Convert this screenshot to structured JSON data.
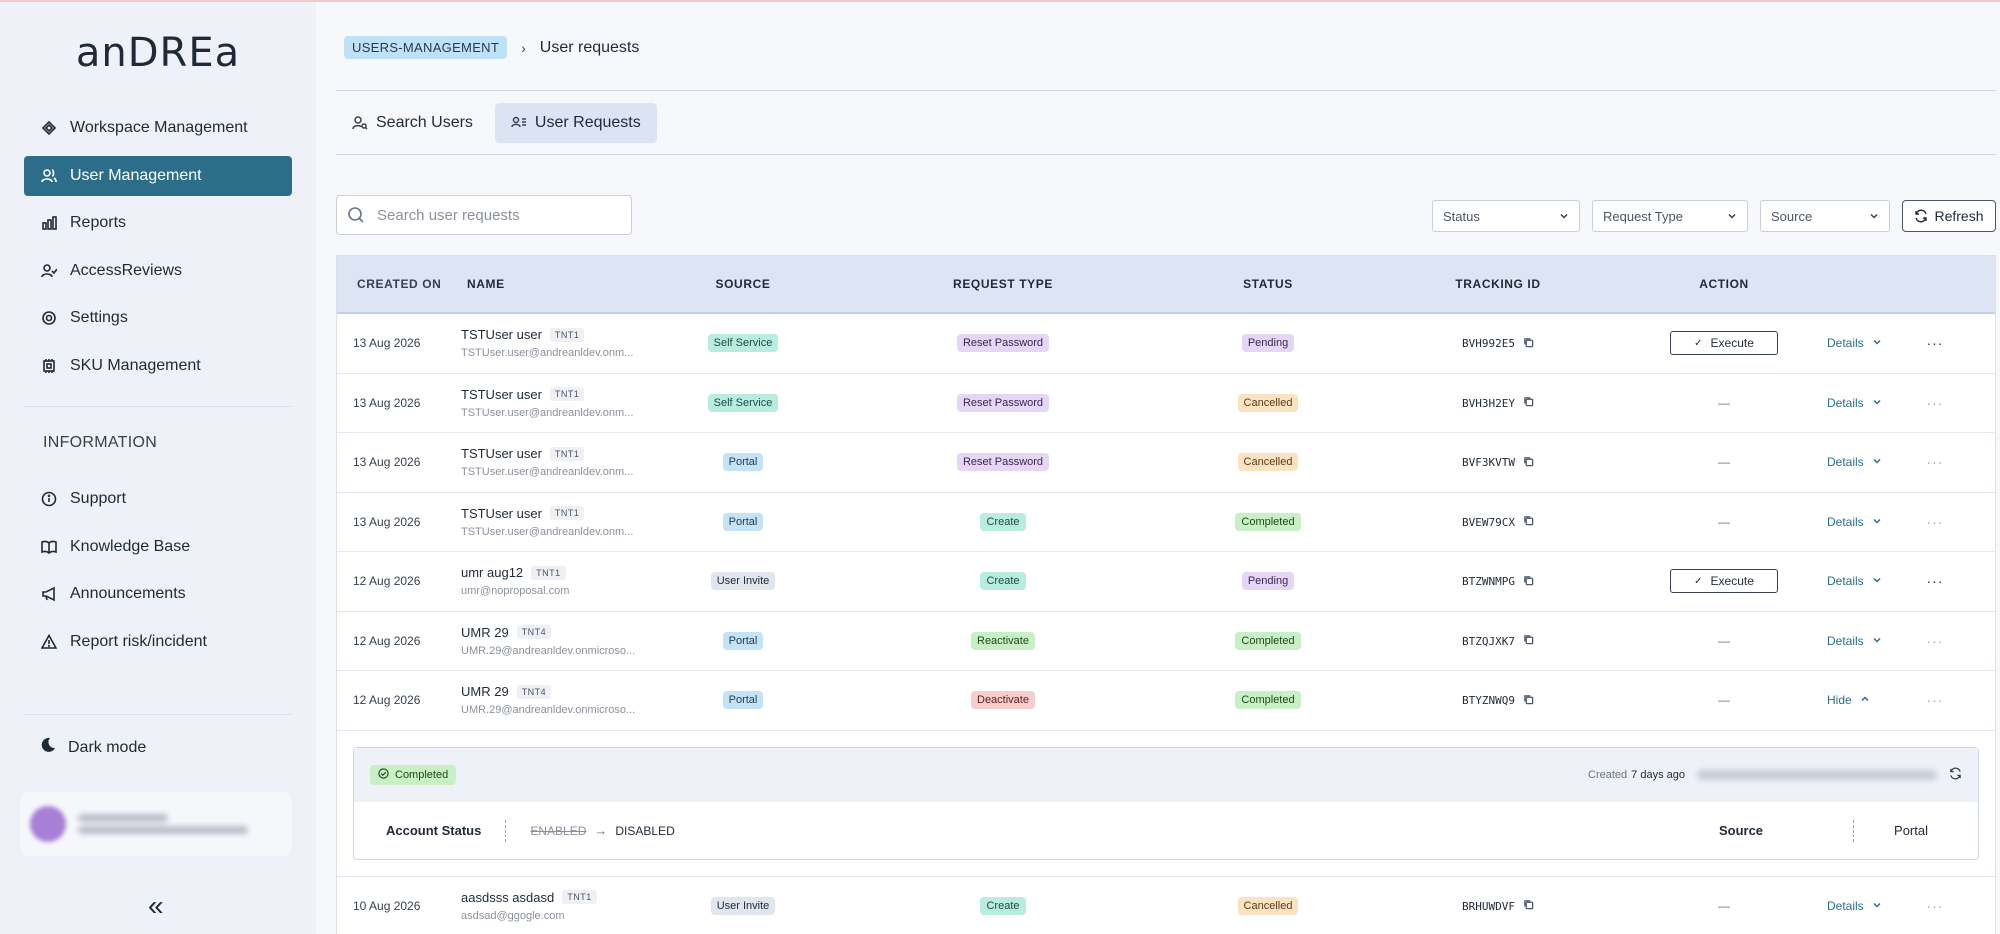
{
  "app": {
    "logo": "anDREa"
  },
  "sidebar": {
    "items": [
      {
        "label": "Workspace Management",
        "icon": "workspace-icon"
      },
      {
        "label": "User Management",
        "icon": "users-icon",
        "active": true
      },
      {
        "label": "Reports",
        "icon": "bar-chart-icon"
      },
      {
        "label": "AccessReviews",
        "icon": "user-check-icon"
      },
      {
        "label": "Settings",
        "icon": "gear-icon"
      },
      {
        "label": "SKU Management",
        "icon": "chip-icon"
      }
    ],
    "section_label": "INFORMATION",
    "info_items": [
      {
        "label": "Support",
        "icon": "info-icon"
      },
      {
        "label": "Knowledge Base",
        "icon": "book-icon"
      },
      {
        "label": "Announcements",
        "icon": "megaphone-icon"
      },
      {
        "label": "Report risk/incident",
        "icon": "warning-icon"
      }
    ],
    "dark_mode_label": "Dark mode",
    "collapse_icon": "«"
  },
  "breadcrumb": {
    "parent": "USERS-MANAGEMENT",
    "separator": "›",
    "current": "User requests"
  },
  "tabs": [
    {
      "label": "Search Users",
      "icon": "user-search-icon"
    },
    {
      "label": "User Requests",
      "icon": "user-list-icon",
      "active": true
    }
  ],
  "search": {
    "placeholder": "Search user requests",
    "value": ""
  },
  "filters": {
    "status": "Status",
    "request_type": "Request Type",
    "source": "Source",
    "refresh": "Refresh"
  },
  "table": {
    "headers": [
      "CREATED ON",
      "NAME",
      "SOURCE",
      "REQUEST TYPE",
      "STATUS",
      "TRACKING ID",
      "ACTION"
    ],
    "rows": [
      {
        "date": "13 Aug 2026",
        "name": "TSTUser user",
        "tenant": "TNT1",
        "email": "TSTUser.user@andreanldev.onm...",
        "source": "Self Service",
        "type": "Reset Password",
        "status": "Pending",
        "tracking": "BVH992E5",
        "action": "Execute",
        "details": "Details"
      },
      {
        "date": "13 Aug 2026",
        "name": "TSTUser user",
        "tenant": "TNT1",
        "email": "TSTUser.user@andreanldev.onm...",
        "source": "Self Service",
        "type": "Reset Password",
        "status": "Cancelled",
        "tracking": "BVH3H2EY",
        "action": "—",
        "details": "Details"
      },
      {
        "date": "13 Aug 2026",
        "name": "TSTUser user",
        "tenant": "TNT1",
        "email": "TSTUser.user@andreanldev.onm...",
        "source": "Portal",
        "type": "Reset Password",
        "status": "Cancelled",
        "tracking": "BVF3KVTW",
        "action": "—",
        "details": "Details"
      },
      {
        "date": "13 Aug 2026",
        "name": "TSTUser user",
        "tenant": "TNT1",
        "email": "TSTUser.user@andreanldev.onm...",
        "source": "Portal",
        "type": "Create",
        "status": "Completed",
        "tracking": "BVEW79CX",
        "action": "—",
        "details": "Details"
      },
      {
        "date": "12 Aug 2026",
        "name": "umr aug12",
        "tenant": "TNT1",
        "email": "umr@noproposal.com",
        "source": "User Invite",
        "type": "Create",
        "status": "Pending",
        "tracking": "BTZWNMPG",
        "action": "Execute",
        "details": "Details"
      },
      {
        "date": "12 Aug 2026",
        "name": "UMR 29",
        "tenant": "TNT4",
        "email": "UMR.29@andreanldev.onmicroso...",
        "source": "Portal",
        "type": "Reactivate",
        "status": "Completed",
        "tracking": "BTZQJXK7",
        "action": "—",
        "details": "Details"
      },
      {
        "date": "12 Aug 2026",
        "name": "UMR 29",
        "tenant": "TNT4",
        "email": "UMR.29@andreanldev.onmicroso...",
        "source": "Portal",
        "type": "Deactivate",
        "status": "Completed",
        "tracking": "BTYZNWQ9",
        "action": "—",
        "details": "Hide"
      }
    ],
    "expanded": {
      "status": "Completed",
      "created_prefix": "Created",
      "created_ago": "7 days ago",
      "field_label": "Account Status",
      "old_value": "ENABLED",
      "arrow": "→",
      "new_value": "DISABLED",
      "source_label": "Source",
      "source_value": "Portal"
    },
    "last_row": {
      "date": "10 Aug 2026",
      "name": "aasdsss asdasd",
      "tenant": "TNT1",
      "email": "asdsad@ggogle.com",
      "source": "User Invite",
      "type": "Create",
      "status": "Cancelled",
      "tracking": "BRHUWDVF",
      "action": "—",
      "details": "Details"
    }
  }
}
